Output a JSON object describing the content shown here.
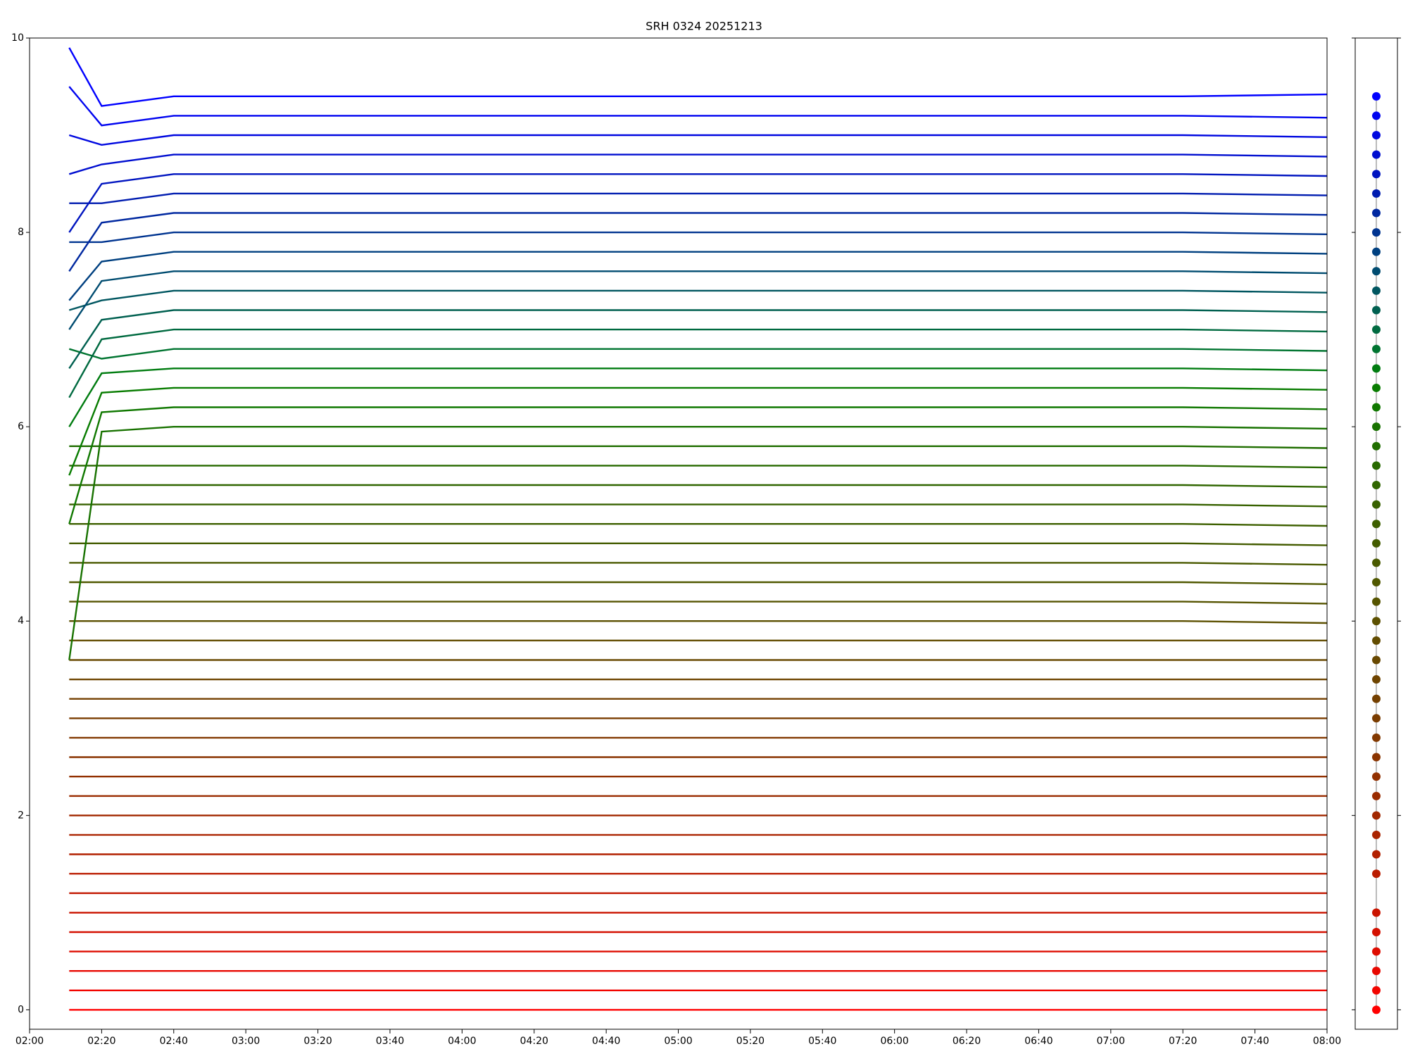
{
  "chart_data": [
    {
      "type": "line",
      "title": "SRH 0324 20251213",
      "x": [
        "02:11",
        "02:20",
        "02:40",
        "03:20",
        "04:00",
        "04:40",
        "05:20",
        "06:00",
        "06:40",
        "07:20",
        "08:00"
      ],
      "xlim": [
        "02:00",
        "08:00"
      ],
      "xticks": [
        "02:00",
        "02:20",
        "02:40",
        "03:00",
        "03:20",
        "03:40",
        "04:00",
        "04:20",
        "04:40",
        "05:00",
        "05:20",
        "05:40",
        "06:00",
        "06:20",
        "06:40",
        "07:00",
        "07:20",
        "07:40",
        "08:00"
      ],
      "ylim": [
        -0.2,
        10
      ],
      "yticks": [
        0,
        2,
        4,
        6,
        8,
        10
      ],
      "series": [
        {
          "color": "#ff0000",
          "values": [
            0,
            0,
            0,
            0,
            0,
            0,
            0,
            0,
            0,
            0,
            0
          ]
        },
        {
          "color": "#f20500",
          "values": [
            0.2,
            0.2,
            0.2,
            0.2,
            0.2,
            0.2,
            0.2,
            0.2,
            0.2,
            0.2,
            0.2
          ]
        },
        {
          "color": "#e80800",
          "values": [
            0.4,
            0.4,
            0.4,
            0.4,
            0.4,
            0.4,
            0.4,
            0.4,
            0.4,
            0.4,
            0.4
          ]
        },
        {
          "color": "#de0c00",
          "values": [
            0.6,
            0.6,
            0.6,
            0.6,
            0.6,
            0.6,
            0.6,
            0.6,
            0.6,
            0.6,
            0.6
          ]
        },
        {
          "color": "#d41000",
          "values": [
            0.8,
            0.8,
            0.8,
            0.8,
            0.8,
            0.8,
            0.8,
            0.8,
            0.8,
            0.8,
            0.8
          ]
        },
        {
          "color": "#ca1400",
          "values": [
            1,
            1,
            1,
            1,
            1,
            1,
            1,
            1,
            1,
            1,
            1
          ]
        },
        {
          "color": "#c21800",
          "values": [
            1.2,
            1.2,
            1.2,
            1.2,
            1.2,
            1.2,
            1.2,
            1.2,
            1.2,
            1.2,
            1.2
          ]
        },
        {
          "color": "#ba1c00",
          "values": [
            1.4,
            1.4,
            1.4,
            1.4,
            1.4,
            1.4,
            1.4,
            1.4,
            1.4,
            1.4,
            1.4
          ]
        },
        {
          "color": "#b22000",
          "values": [
            1.6,
            1.6,
            1.6,
            1.6,
            1.6,
            1.6,
            1.6,
            1.6,
            1.6,
            1.6,
            1.6
          ]
        },
        {
          "color": "#aa2400",
          "values": [
            1.8,
            1.8,
            1.8,
            1.8,
            1.8,
            1.8,
            1.8,
            1.8,
            1.8,
            1.8,
            1.8
          ]
        },
        {
          "color": "#a22800",
          "values": [
            2,
            2,
            2,
            2,
            2,
            2,
            2,
            2,
            2,
            2,
            2
          ]
        },
        {
          "color": "#9a2c00",
          "values": [
            2.2,
            2.2,
            2.2,
            2.2,
            2.2,
            2.2,
            2.2,
            2.2,
            2.2,
            2.2,
            2.2
          ]
        },
        {
          "color": "#923000",
          "values": [
            2.4,
            2.4,
            2.4,
            2.4,
            2.4,
            2.4,
            2.4,
            2.4,
            2.4,
            2.4,
            2.4
          ]
        },
        {
          "color": "#8a3400",
          "values": [
            2.6,
            2.6,
            2.6,
            2.6,
            2.6,
            2.6,
            2.6,
            2.6,
            2.6,
            2.6,
            2.6
          ]
        },
        {
          "color": "#823800",
          "values": [
            2.8,
            2.8,
            2.8,
            2.8,
            2.8,
            2.8,
            2.8,
            2.8,
            2.8,
            2.8,
            2.8
          ]
        },
        {
          "color": "#7a3c00",
          "values": [
            3,
            3,
            3,
            3,
            3,
            3,
            3,
            3,
            3,
            3,
            3
          ]
        },
        {
          "color": "#744000",
          "values": [
            3.2,
            3.2,
            3.2,
            3.2,
            3.2,
            3.2,
            3.2,
            3.2,
            3.2,
            3.2,
            3.2
          ]
        },
        {
          "color": "#6e4400",
          "values": [
            3.4,
            3.4,
            3.4,
            3.4,
            3.4,
            3.4,
            3.4,
            3.4,
            3.4,
            3.4,
            3.4
          ]
        },
        {
          "color": "#684800",
          "values": [
            3.6,
            3.6,
            3.6,
            3.6,
            3.6,
            3.6,
            3.6,
            3.6,
            3.6,
            3.6,
            3.6
          ]
        },
        {
          "color": "#624c00",
          "values": [
            3.8,
            3.8,
            3.8,
            3.8,
            3.8,
            3.8,
            3.8,
            3.8,
            3.8,
            3.8,
            3.8
          ]
        },
        {
          "color": "#5c5000",
          "values": [
            4,
            4,
            4,
            4,
            4,
            4,
            4,
            4,
            4,
            4,
            3.98
          ]
        },
        {
          "color": "#565400",
          "values": [
            4.2,
            4.2,
            4.2,
            4.2,
            4.2,
            4.2,
            4.2,
            4.2,
            4.2,
            4.2,
            4.18
          ]
        },
        {
          "color": "#505800",
          "values": [
            4.4,
            4.4,
            4.4,
            4.4,
            4.4,
            4.4,
            4.4,
            4.4,
            4.4,
            4.4,
            4.38
          ]
        },
        {
          "color": "#4a5a00",
          "values": [
            4.6,
            4.6,
            4.6,
            4.6,
            4.6,
            4.6,
            4.6,
            4.6,
            4.6,
            4.6,
            4.58
          ]
        },
        {
          "color": "#445c00",
          "values": [
            4.8,
            4.8,
            4.8,
            4.8,
            4.8,
            4.8,
            4.8,
            4.8,
            4.8,
            4.8,
            4.78
          ]
        },
        {
          "color": "#3e6000",
          "values": [
            5,
            5,
            5,
            5,
            5,
            5,
            5,
            5,
            5,
            5,
            4.98
          ]
        },
        {
          "color": "#386200",
          "values": [
            5.2,
            5.2,
            5.2,
            5.2,
            5.2,
            5.2,
            5.2,
            5.2,
            5.2,
            5.2,
            5.18
          ]
        },
        {
          "color": "#306600",
          "values": [
            5.4,
            5.4,
            5.4,
            5.4,
            5.4,
            5.4,
            5.4,
            5.4,
            5.4,
            5.4,
            5.38
          ]
        },
        {
          "color": "#286a00",
          "values": [
            5.6,
            5.6,
            5.6,
            5.6,
            5.6,
            5.6,
            5.6,
            5.6,
            5.6,
            5.6,
            5.58
          ]
        },
        {
          "color": "#206e00",
          "values": [
            5.8,
            5.8,
            5.8,
            5.8,
            5.8,
            5.8,
            5.8,
            5.8,
            5.8,
            5.8,
            5.78
          ]
        },
        {
          "color": "#187200",
          "values": [
            3.6,
            5.95,
            6,
            6,
            6,
            6,
            6,
            6,
            6,
            6,
            5.98
          ]
        },
        {
          "color": "#107800",
          "values": [
            5,
            6.15,
            6.2,
            6.2,
            6.2,
            6.2,
            6.2,
            6.2,
            6.2,
            6.2,
            6.18
          ]
        },
        {
          "color": "#087c00",
          "values": [
            5.5,
            6.35,
            6.4,
            6.4,
            6.4,
            6.4,
            6.4,
            6.4,
            6.4,
            6.4,
            6.38
          ]
        },
        {
          "color": "#007c10",
          "values": [
            6,
            6.55,
            6.6,
            6.6,
            6.6,
            6.6,
            6.6,
            6.6,
            6.6,
            6.6,
            6.58
          ]
        },
        {
          "color": "#007430",
          "values": [
            6.8,
            6.7,
            6.8,
            6.8,
            6.8,
            6.8,
            6.8,
            6.8,
            6.8,
            6.8,
            6.78
          ]
        },
        {
          "color": "#006a40",
          "values": [
            6.3,
            6.9,
            7,
            7,
            7,
            7,
            7,
            7,
            7,
            7,
            6.98
          ]
        },
        {
          "color": "#006050",
          "values": [
            6.6,
            7.1,
            7.2,
            7.2,
            7.2,
            7.2,
            7.2,
            7.2,
            7.2,
            7.2,
            7.18
          ]
        },
        {
          "color": "#005660",
          "values": [
            7.2,
            7.3,
            7.4,
            7.4,
            7.4,
            7.4,
            7.4,
            7.4,
            7.4,
            7.4,
            7.38
          ]
        },
        {
          "color": "#004c70",
          "values": [
            7,
            7.5,
            7.6,
            7.6,
            7.6,
            7.6,
            7.6,
            7.6,
            7.6,
            7.6,
            7.58
          ]
        },
        {
          "color": "#004080",
          "values": [
            7.3,
            7.7,
            7.8,
            7.8,
            7.8,
            7.8,
            7.8,
            7.8,
            7.8,
            7.8,
            7.78
          ]
        },
        {
          "color": "#003490",
          "values": [
            7.9,
            7.9,
            8,
            8,
            8,
            8,
            8,
            8,
            8,
            8,
            7.98
          ]
        },
        {
          "color": "#0028a0",
          "values": [
            7.6,
            8.1,
            8.2,
            8.2,
            8.2,
            8.2,
            8.2,
            8.2,
            8.2,
            8.2,
            8.18
          ]
        },
        {
          "color": "#001cb0",
          "values": [
            8.3,
            8.3,
            8.4,
            8.4,
            8.4,
            8.4,
            8.4,
            8.4,
            8.4,
            8.4,
            8.38
          ]
        },
        {
          "color": "#0014c0",
          "values": [
            8,
            8.5,
            8.6,
            8.6,
            8.6,
            8.6,
            8.6,
            8.6,
            8.6,
            8.6,
            8.58
          ]
        },
        {
          "color": "#000ed0",
          "values": [
            8.6,
            8.7,
            8.8,
            8.8,
            8.8,
            8.8,
            8.8,
            8.8,
            8.8,
            8.8,
            8.78
          ]
        },
        {
          "color": "#0008e0",
          "values": [
            9,
            8.9,
            9,
            9,
            9,
            9,
            9,
            9,
            9,
            9,
            8.98
          ]
        },
        {
          "color": "#0004f0",
          "values": [
            9.5,
            9.1,
            9.2,
            9.2,
            9.2,
            9.2,
            9.2,
            9.2,
            9.2,
            9.2,
            9.18
          ]
        },
        {
          "color": "#0000ff",
          "values": [
            9.9,
            9.3,
            9.4,
            9.4,
            9.4,
            9.4,
            9.4,
            9.4,
            9.4,
            9.4,
            9.42
          ]
        }
      ]
    },
    {
      "type": "dots",
      "ylim": [
        -0.2,
        10
      ],
      "yticks": [
        0,
        2,
        4,
        6,
        8,
        10
      ],
      "values": [
        0,
        0.2,
        0.4,
        0.6,
        0.8,
        1,
        1.4,
        1.6,
        1.8,
        2,
        2.2,
        2.4,
        2.6,
        2.8,
        3,
        3.2,
        3.4,
        3.6,
        3.8,
        4,
        4.2,
        4.4,
        4.6,
        4.8,
        5,
        5.2,
        5.4,
        5.6,
        5.8,
        6,
        6.2,
        6.4,
        6.6,
        6.8,
        7,
        7.2,
        7.4,
        7.6,
        7.8,
        8,
        8.2,
        8.4,
        8.6,
        8.8,
        9,
        9.2,
        9.4
      ],
      "colors": [
        "#ff0000",
        "#f20500",
        "#e80800",
        "#de0c00",
        "#d41000",
        "#ca1400",
        "#ba1c00",
        "#b22000",
        "#aa2400",
        "#a22800",
        "#9a2c00",
        "#923000",
        "#8a3400",
        "#823800",
        "#7a3c00",
        "#744000",
        "#6e4400",
        "#684800",
        "#624c00",
        "#5c5000",
        "#565400",
        "#505800",
        "#4a5a00",
        "#445c00",
        "#3e6000",
        "#386200",
        "#306600",
        "#286a00",
        "#206e00",
        "#187200",
        "#107800",
        "#087c00",
        "#007c10",
        "#007430",
        "#006a40",
        "#006050",
        "#005660",
        "#004c70",
        "#004080",
        "#003490",
        "#0028a0",
        "#001cb0",
        "#0014c0",
        "#000ed0",
        "#0008e0",
        "#0004f0",
        "#0000ff"
      ]
    }
  ]
}
